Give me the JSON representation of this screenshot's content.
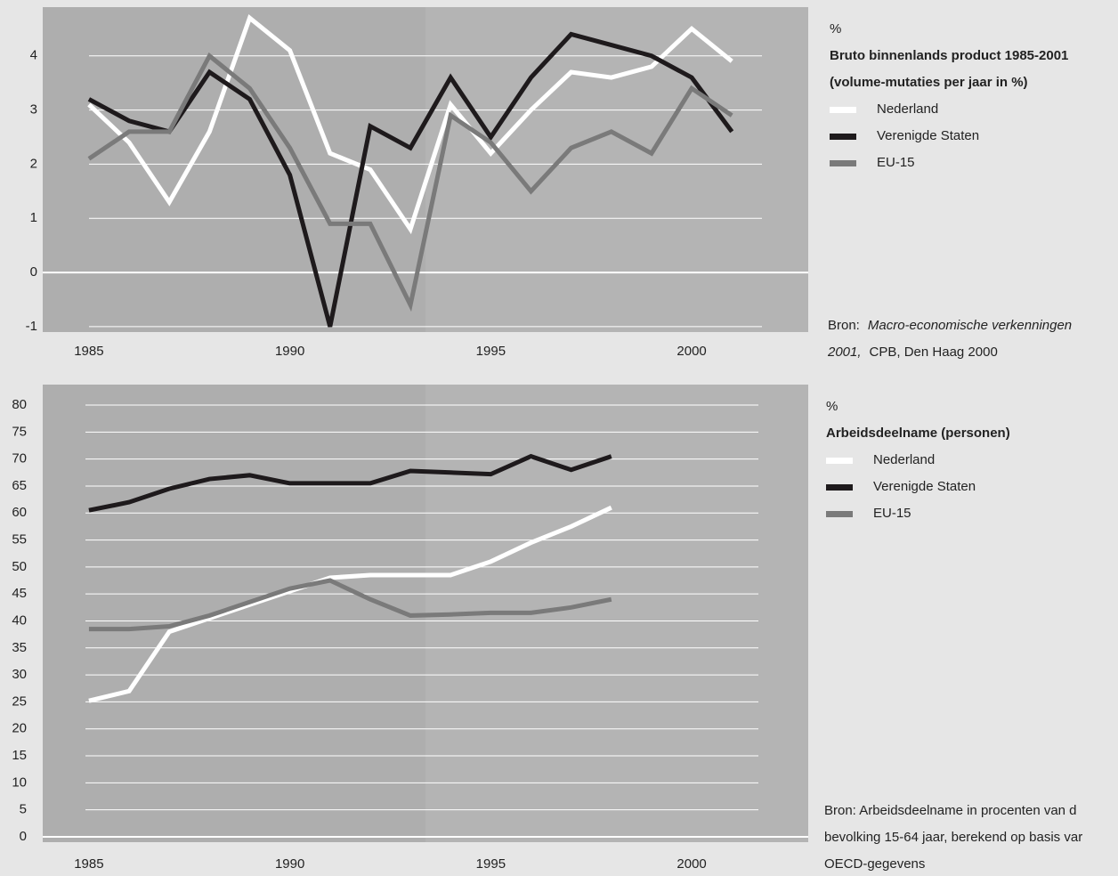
{
  "chart_data": [
    {
      "type": "line",
      "unit": "%",
      "title": "Bruto binnenlands product 1985-2001",
      "subtitle": "(volume-mutaties per jaar in %)",
      "x": [
        1985,
        1986,
        1987,
        1988,
        1989,
        1990,
        1991,
        1992,
        1993,
        1994,
        1995,
        1996,
        1997,
        1998,
        1999,
        2000,
        2001
      ],
      "series": [
        {
          "name": "Nederland",
          "color": "#ffffff",
          "values": [
            3.1,
            2.4,
            1.3,
            2.6,
            4.7,
            4.1,
            2.2,
            1.9,
            0.8,
            3.1,
            2.2,
            3.0,
            3.7,
            3.6,
            3.8,
            4.5,
            3.9
          ]
        },
        {
          "name": "Verenigde Staten",
          "color": "#1e1a1c",
          "values": [
            3.2,
            2.8,
            2.6,
            3.7,
            3.2,
            1.8,
            -1.0,
            2.7,
            2.3,
            3.6,
            2.5,
            3.6,
            4.4,
            4.2,
            4.0,
            3.6,
            2.6
          ]
        },
        {
          "name": "EU-15",
          "color": "#7a7a7a",
          "values": [
            2.1,
            2.6,
            2.6,
            4.0,
            3.4,
            2.3,
            0.9,
            0.9,
            -0.6,
            2.9,
            2.4,
            1.5,
            2.3,
            2.6,
            2.2,
            3.4,
            2.9
          ]
        }
      ],
      "xlim": [
        1983.85,
        2002.9
      ],
      "xticks": [
        1985,
        1990,
        1995,
        2000
      ],
      "ylim": [
        -1.1,
        4.9
      ],
      "yticks": [
        -1,
        0,
        1,
        2,
        3,
        4
      ],
      "grid": true,
      "source": [
        [
          {
            "text": "Bron:"
          },
          {
            "text": "Macro-economische verkenningen",
            "italic": true
          }
        ],
        [
          {
            "text": "2001,",
            "italic": true
          },
          {
            "text": "CPB, Den Haag 2000"
          }
        ]
      ]
    },
    {
      "type": "line",
      "unit": "%",
      "title": "Arbeidsdeelname (personen)",
      "x": [
        1985,
        1986,
        1987,
        1988,
        1989,
        1990,
        1991,
        1992,
        1993,
        1994,
        1995,
        1996,
        1997,
        1998
      ],
      "series": [
        {
          "name": "Nederland",
          "color": "#ffffff",
          "values": [
            25.2,
            27,
            38,
            40.5,
            43,
            45.5,
            48,
            48.5,
            48.5,
            48.5,
            51,
            54.5,
            57.5,
            61
          ]
        },
        {
          "name": "Verenigde Staten",
          "color": "#1e1a1c",
          "values": [
            60.5,
            62,
            64.5,
            66.3,
            67,
            65.5,
            65.5,
            65.5,
            67.8,
            67.5,
            67.2,
            70.5,
            68,
            70.5
          ]
        },
        {
          "name": "EU-15",
          "color": "#7a7a7a",
          "values": [
            38.5,
            38.5,
            39,
            41,
            43.5,
            46,
            47.5,
            44,
            41,
            41.2,
            41.5,
            41.5,
            42.5,
            44
          ]
        }
      ],
      "xlim": [
        1983.85,
        2002.9
      ],
      "xticks": [
        1985,
        1990,
        1995,
        2000
      ],
      "ylim": [
        -1,
        83.8
      ],
      "yticks": [
        0,
        5,
        10,
        15,
        20,
        25,
        30,
        35,
        40,
        45,
        50,
        55,
        60,
        65,
        70,
        75,
        80
      ],
      "grid": true,
      "source": [
        [
          {
            "text": "Bron: Arbeidsdeelname in procenten van d"
          }
        ],
        [
          {
            "text": "bevolking 15-64 jaar, berekend op basis var"
          }
        ],
        [
          {
            "text": "OECD-gegevens"
          }
        ]
      ]
    }
  ]
}
